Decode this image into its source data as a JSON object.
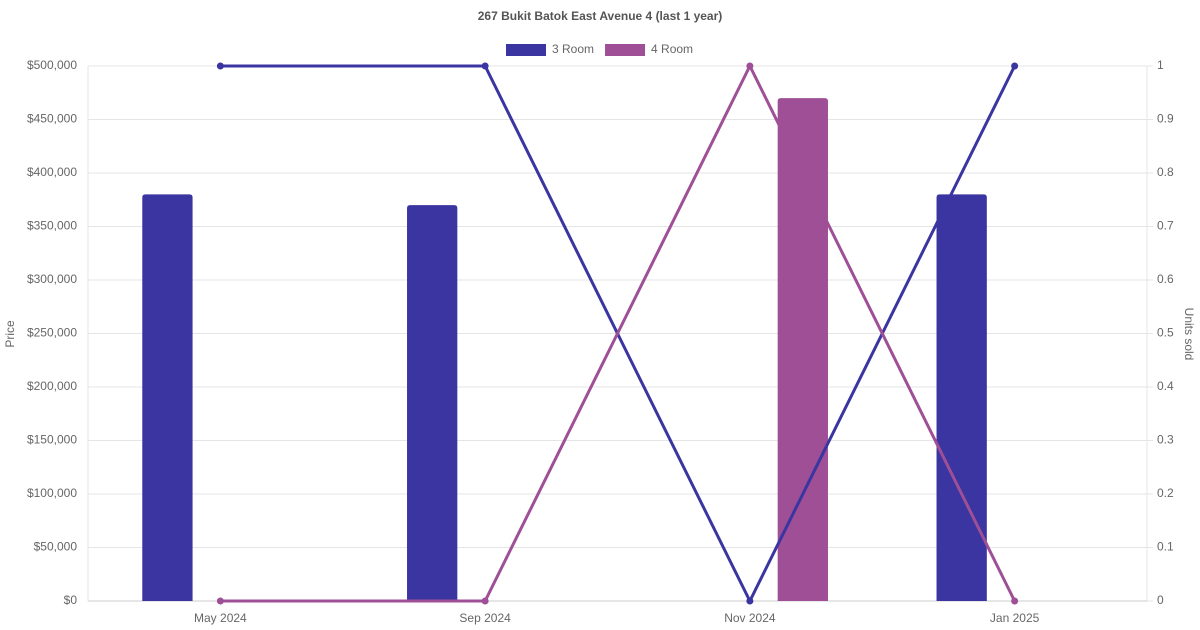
{
  "chart_data": {
    "type": "bar-line",
    "title": "267 Bukit Batok East Avenue 4 (last 1 year)",
    "categories": [
      "May 2024",
      "Sep 2024",
      "Nov 2024",
      "Jan 2025"
    ],
    "series": [
      {
        "name": "3 Room",
        "color": "#3a35a0",
        "values": [
          380000,
          370000,
          null,
          380000
        ],
        "units_sold": [
          1,
          1,
          0,
          1
        ]
      },
      {
        "name": "4 Room",
        "color": "#9e4f96",
        "values": [
          null,
          null,
          470000,
          null
        ],
        "units_sold": [
          0,
          0,
          1,
          0
        ]
      }
    ],
    "ylabel": "Price",
    "y2label": "Units sold",
    "ylim": [
      0,
      500000
    ],
    "yticks": [
      {
        "value": 0,
        "label": "$0"
      },
      {
        "value": 50000,
        "label": "$50,000"
      },
      {
        "value": 100000,
        "label": "$100,000"
      },
      {
        "value": 150000,
        "label": "$150,000"
      },
      {
        "value": 200000,
        "label": "$200,000"
      },
      {
        "value": 250000,
        "label": "$250,000"
      },
      {
        "value": 300000,
        "label": "$300,000"
      },
      {
        "value": 350000,
        "label": "$350,000"
      },
      {
        "value": 400000,
        "label": "$400,000"
      },
      {
        "value": 450000,
        "label": "$450,000"
      },
      {
        "value": 500000,
        "label": "$500,000"
      }
    ],
    "y2lim": [
      0,
      1
    ],
    "y2ticks": [
      0,
      0.1,
      0.2,
      0.3,
      0.4,
      0.5,
      0.6,
      0.7,
      0.8,
      0.9,
      1
    ],
    "grid": true,
    "legend": "top"
  }
}
